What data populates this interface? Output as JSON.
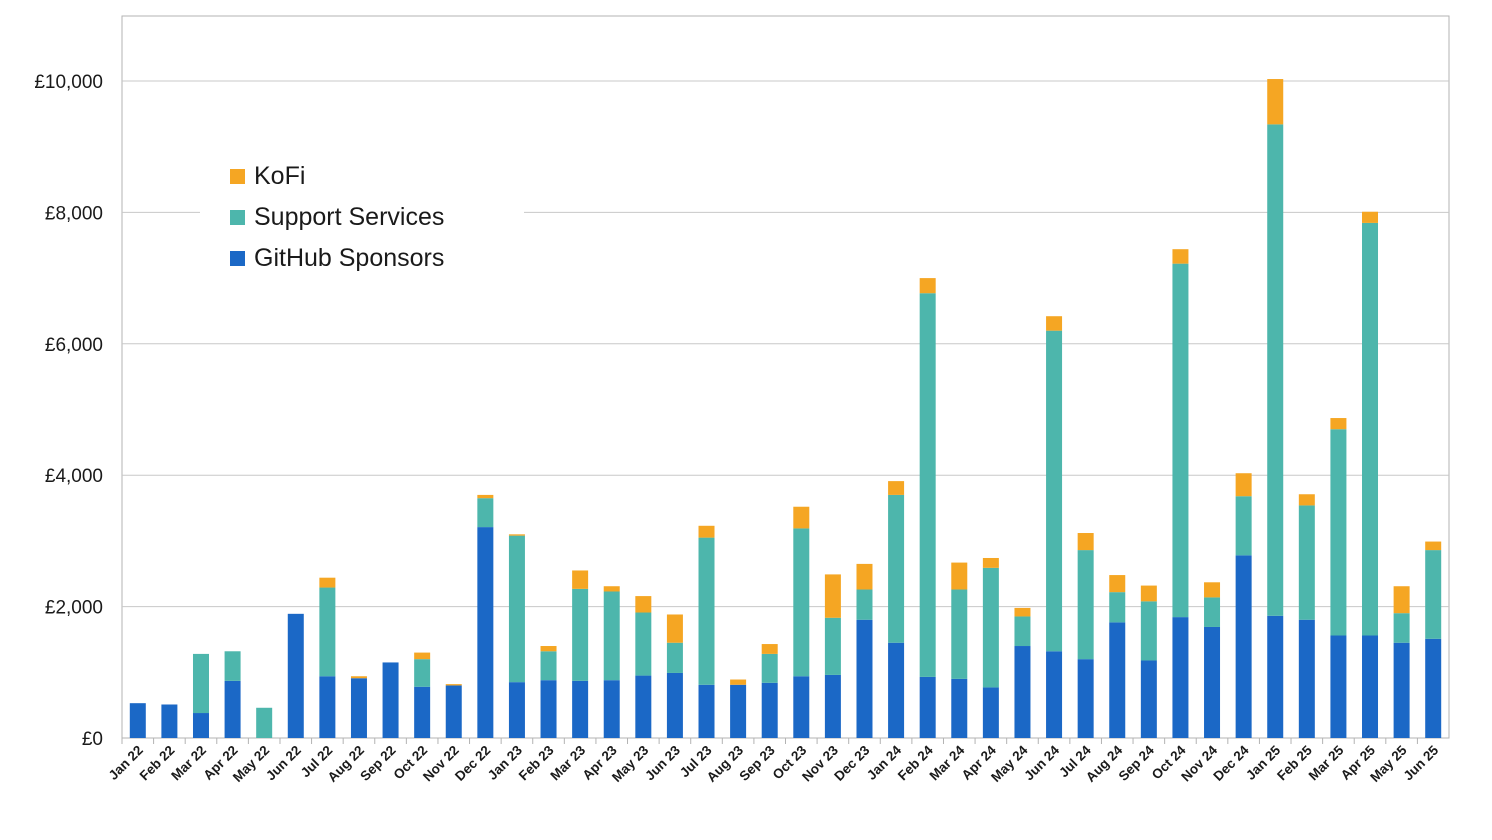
{
  "chart_data": {
    "type": "bar",
    "stacked": true,
    "title": "",
    "xlabel": "",
    "ylabel": "",
    "ylim": [
      0,
      11000
    ],
    "y_ticks": [
      "£0",
      "£2,000",
      "£4,000",
      "£6,000",
      "£8,000",
      "£10,000"
    ],
    "y_tick_values": [
      0,
      2000,
      4000,
      6000,
      8000,
      10000
    ],
    "grid": true,
    "legend_position": "top-left",
    "categories": [
      "Jan 22",
      "Feb 22",
      "Mar 22",
      "Apr 22",
      "May 22",
      "Jun 22",
      "Jul 22",
      "Aug 22",
      "Sep 22",
      "Oct 22",
      "Nov 22",
      "Dec 22",
      "Jan 23",
      "Feb 23",
      "Mar 23",
      "Apr 23",
      "May 23",
      "Jun 23",
      "Jul 23",
      "Aug 23",
      "Sep 23",
      "Oct 23",
      "Nov 23",
      "Dec 23",
      "Jan 24",
      "Feb 24",
      "Mar 24",
      "Apr 24",
      "May 24",
      "Jun 24",
      "Jul 24",
      "Aug 24",
      "Sep 24",
      "Oct 24",
      "Nov 24",
      "Dec 24",
      "Jan 25",
      "Feb 25",
      "Mar 25",
      "Apr 25",
      "May 25",
      "Jun 25"
    ],
    "series": [
      {
        "name": "GitHub Sponsors",
        "color": "#1b68c6",
        "values": [
          530,
          510,
          380,
          870,
          0,
          1890,
          940,
          910,
          1150,
          780,
          800,
          3210,
          850,
          880,
          870,
          880,
          950,
          990,
          810,
          810,
          840,
          940,
          960,
          1800,
          1450,
          930,
          900,
          770,
          1400,
          1320,
          1200,
          1760,
          1180,
          1840,
          1690,
          2780,
          1860,
          1800,
          1560,
          1560,
          1450,
          1510
        ]
      },
      {
        "name": "Support Services",
        "color": "#4db6ac",
        "values": [
          0,
          0,
          900,
          450,
          460,
          0,
          1350,
          0,
          0,
          420,
          0,
          440,
          2230,
          440,
          1400,
          1350,
          960,
          460,
          2240,
          0,
          440,
          2250,
          870,
          460,
          2250,
          5840,
          1360,
          1820,
          450,
          4880,
          1660,
          460,
          900,
          5380,
          450,
          900,
          7480,
          1740,
          3140,
          6280,
          450,
          1350
        ]
      },
      {
        "name": "KoFi",
        "color": "#f5a623",
        "values": [
          0,
          0,
          0,
          0,
          0,
          0,
          150,
          30,
          0,
          100,
          20,
          50,
          20,
          80,
          280,
          80,
          250,
          430,
          180,
          80,
          150,
          330,
          660,
          390,
          210,
          230,
          410,
          150,
          130,
          220,
          260,
          260,
          240,
          220,
          230,
          350,
          690,
          170,
          170,
          170,
          410,
          130
        ]
      }
    ]
  }
}
